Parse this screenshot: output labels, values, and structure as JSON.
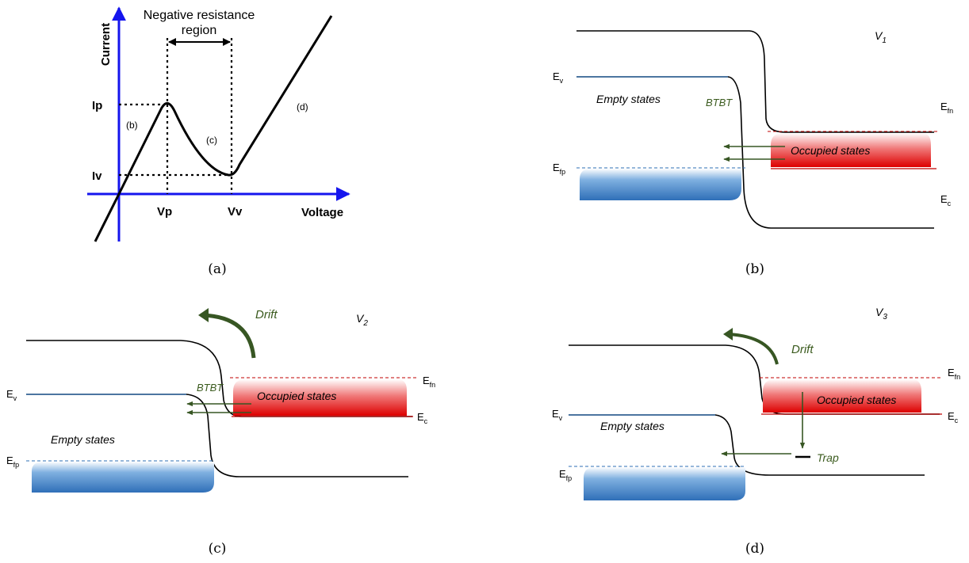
{
  "colors": {
    "axis": "#1515ee",
    "hole_band": "#3a7bc8",
    "electron_band": "#e00000",
    "arrow_green": "#375623",
    "label_green": "#3b5b1e"
  },
  "panel_a": {
    "caption": "(a)",
    "y_axis": "Current",
    "x_axis": "Voltage",
    "region_line1": "Negative resistance",
    "region_line2": "region",
    "ip": "Ip",
    "iv": "Iv",
    "vp": "Vp",
    "vv": "Vv",
    "seg_b": "(b)",
    "seg_c": "(c)",
    "seg_d": "(d)"
  },
  "panel_b": {
    "caption": "(b)",
    "voltage": "V",
    "voltage_sub": "1",
    "ev": "E",
    "ev_sub": "v",
    "efp": "E",
    "efp_sub": "fp",
    "efn": "E",
    "efn_sub": "fn",
    "ec": "E",
    "ec_sub": "c",
    "empty_states": "Empty states",
    "occupied_states": "Occupied states",
    "btbt": "BTBT"
  },
  "panel_c": {
    "caption": "(c)",
    "voltage": "V",
    "voltage_sub": "2",
    "drift": "Drift",
    "ev": "E",
    "ev_sub": "v",
    "efp": "E",
    "efp_sub": "fp",
    "efn": "E",
    "efn_sub": "fn",
    "ec": "E",
    "ec_sub": "c",
    "empty_states": "Empty states",
    "occupied_states": "Occupied states",
    "btbt": "BTBT"
  },
  "panel_d": {
    "caption": "(d)",
    "voltage": "V",
    "voltage_sub": "3",
    "drift": "Drift",
    "ev": "E",
    "ev_sub": "v",
    "efp": "E",
    "efp_sub": "fp",
    "efn": "E",
    "efn_sub": "fn",
    "ec": "E",
    "ec_sub": "c",
    "empty_states": "Empty states",
    "occupied_states": "Occupied states",
    "trap": "Trap"
  }
}
